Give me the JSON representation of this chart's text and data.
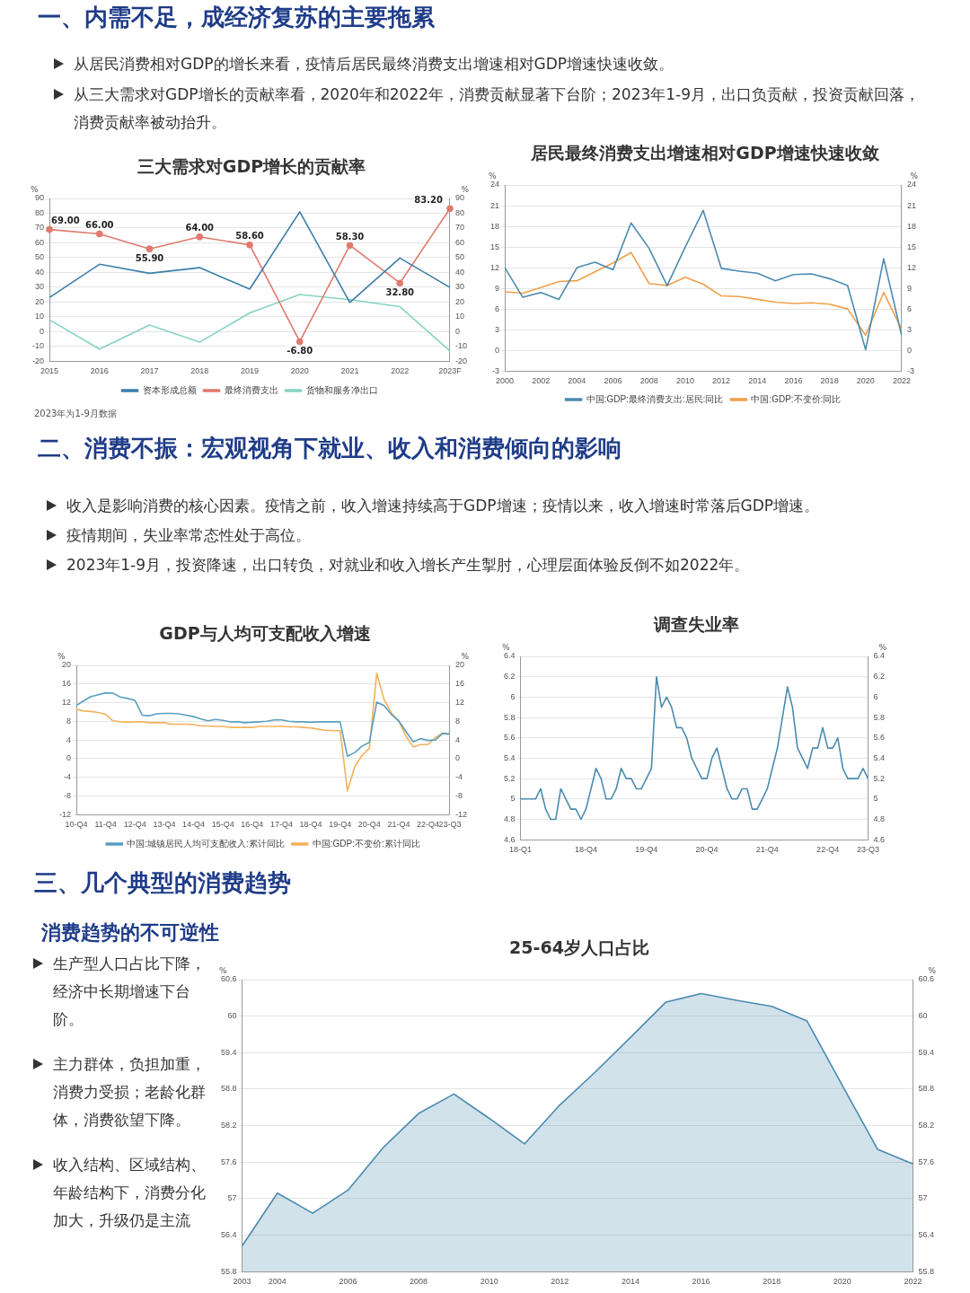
{
  "chart_data": [
    {
      "type": "line",
      "title": "三大需求对GDP增长的贡献率",
      "annotations": [
        "一、内需不足，成经济复苏的主要拖累",
        "从居民消费相对GDP的增长来看，疫情后居民最终消费支出增速相对GDP增速快速收敛。",
        "从三大需求对GDP增长的贡献率看，2020年和2022年，消费贡献显著下台阶；2023年1-9月，出口负贡献，投资贡献回落，消费贡献率被动抬升。",
        "2023年为1-9月数据"
      ],
      "categories": [
        "2015",
        "2016",
        "2017",
        "2018",
        "2019",
        "2020",
        "2021",
        "2022",
        "2023F"
      ],
      "series": [
        {
          "name": "资本形成总额",
          "color": "#3b7fa8",
          "values": [
            23,
            45.5,
            39.4,
            43.2,
            28.7,
            81,
            19.7,
            49.7,
            29.8
          ]
        },
        {
          "name": "最终消费支出",
          "color": "#e07a6e",
          "marker": "circle",
          "values": [
            69,
            66,
            55.9,
            64,
            58.6,
            -6.8,
            58.3,
            32.8,
            83.2
          ],
          "value_labels": [
            "69.00",
            "66.00",
            "55.90",
            "64.00",
            "58.60",
            "-6.80",
            "58.30",
            "32.80",
            "83.20"
          ]
        },
        {
          "name": "货物和服务净出口",
          "color": "#86d3c3",
          "values": [
            8,
            -11.8,
            4.4,
            -7.2,
            12.6,
            25,
            21.6,
            16.8,
            -13.1
          ]
        }
      ],
      "ylabel": "%",
      "y2label": "%",
      "ylim": [
        -20,
        90
      ],
      "yticks": [
        -20,
        -10,
        0,
        10,
        20,
        30,
        40,
        50,
        60,
        70,
        80,
        90
      ],
      "y2lim": [
        -20,
        90
      ],
      "y2ticks": [
        -20,
        -10,
        0,
        10,
        20,
        30,
        40,
        50,
        60,
        70,
        80,
        90
      ],
      "grid": "y",
      "legend": "bottom",
      "marker": "none",
      "line_style": "solid"
    },
    {
      "type": "line",
      "title": "居民最终消费支出增速相对GDP增速快速收敛",
      "x": [
        2000,
        2001,
        2002,
        2003,
        2004,
        2005,
        2006,
        2007,
        2008,
        2009,
        2010,
        2011,
        2012,
        2013,
        2014,
        2015,
        2016,
        2017,
        2018,
        2019,
        2020,
        2021,
        2022
      ],
      "series": [
        {
          "name": "中国:GDP:最终消费支出:居民:同比",
          "color": "#4a8bb0",
          "values": [
            12.0,
            7.7,
            8.4,
            7.4,
            12.0,
            12.8,
            11.7,
            18.5,
            14.8,
            9.4,
            15.0,
            20.3,
            11.9,
            11.5,
            11.2,
            10.1,
            11.0,
            11.1,
            10.4,
            9.4,
            0.1,
            13.3,
            2.1
          ]
        },
        {
          "name": "中国:GDP:不变价:同比",
          "color": "#f0a04b",
          "values": [
            8.5,
            8.3,
            9.1,
            10.0,
            10.1,
            11.4,
            12.7,
            14.2,
            9.7,
            9.4,
            10.6,
            9.6,
            7.9,
            7.8,
            7.4,
            7.0,
            6.8,
            6.9,
            6.7,
            6.0,
            2.2,
            8.4,
            3.0
          ]
        }
      ],
      "xlim": [
        2000,
        2022
      ],
      "xticks": [
        2000,
        2002,
        2004,
        2006,
        2008,
        2010,
        2012,
        2014,
        2016,
        2018,
        2020,
        2022
      ],
      "ylabel": "%",
      "y2label": "%",
      "ylim": [
        -3,
        24
      ],
      "yticks": [
        -3,
        0,
        3,
        6,
        9,
        12,
        15,
        18,
        21,
        24
      ],
      "y2lim": [
        -3,
        24
      ],
      "y2ticks": [
        -3,
        0,
        3,
        6,
        9,
        12,
        15,
        18,
        21,
        24
      ],
      "grid": "y",
      "legend": "bottom",
      "marker": "none",
      "line_style": "solid"
    },
    {
      "type": "line",
      "title": "GDP与人均可支配收入增速",
      "annotations": [
        "二、消费不振：宏观视角下就业、收入和消费倾向的影响",
        "收入是影响消费的核心因素。疫情之前，收入增速持续高于GDP增速；疫情以来，收入增速时常落后GDP增速。",
        "疫情期间，失业率常态性处于高位。",
        "2023年1-9月，投资降速，出口转负，对就业和收入增长产生掣肘，心理层面体验反倒不如2022年。"
      ],
      "categories": [
        "10-Q4",
        null,
        null,
        null,
        "11-Q4",
        null,
        null,
        null,
        "12-Q4",
        null,
        null,
        null,
        "13-Q4",
        null,
        null,
        null,
        "14-Q4",
        null,
        null,
        null,
        "15-Q4",
        null,
        null,
        null,
        "16-Q4",
        null,
        null,
        null,
        "17-Q4",
        null,
        null,
        null,
        "18-Q4",
        null,
        null,
        null,
        "19-Q4",
        null,
        null,
        null,
        "20-Q4",
        null,
        null,
        null,
        "21-Q4",
        null,
        null,
        null,
        "22-Q4",
        null,
        null,
        "23-Q3"
      ],
      "series": [
        {
          "name": "中国:城镇居民人均可支配收入:累计同比",
          "color": "#5a9fc0",
          "values": [
            11.4,
            12.4,
            13.3,
            13.7,
            14.1,
            14.0,
            13.2,
            12.9,
            12.5,
            9.3,
            9.2,
            9.6,
            9.7,
            9.7,
            9.6,
            9.3,
            9.0,
            8.5,
            8.1,
            8.4,
            8.2,
            7.9,
            7.9,
            7.7,
            7.8,
            7.9,
            8.0,
            8.3,
            8.3,
            8.0,
            7.9,
            7.9,
            7.8,
            7.9,
            7.9,
            7.9,
            7.9,
            0.5,
            1.3,
            2.7,
            3.5,
            12.1,
            11.4,
            9.5,
            8.1,
            5.8,
            3.6,
            4.3,
            3.9,
            4.0,
            5.4,
            5.3
          ]
        },
        {
          "name": "中国:GDP:不变价:累计同比",
          "color": "#f2b25c",
          "values": [
            10.6,
            10.2,
            10.1,
            9.9,
            9.5,
            8.1,
            7.9,
            7.8,
            7.9,
            7.9,
            7.7,
            7.7,
            7.7,
            7.4,
            7.4,
            7.4,
            7.3,
            7.0,
            7.0,
            6.9,
            6.9,
            6.7,
            6.7,
            6.7,
            6.7,
            6.9,
            6.9,
            6.9,
            6.9,
            6.8,
            6.8,
            6.7,
            6.6,
            6.3,
            6.1,
            6.0,
            6.0,
            -6.9,
            -1.7,
            0.7,
            2.2,
            18.3,
            12.7,
            9.8,
            8.1,
            4.8,
            2.5,
            3.0,
            3.0,
            4.5,
            5.5,
            5.2
          ]
        }
      ],
      "ylabel": "%",
      "y2label": "%",
      "ylim": [
        -12,
        20
      ],
      "yticks": [
        -12,
        -8,
        -4,
        0,
        4,
        8,
        12,
        16,
        20
      ],
      "y2lim": [
        -12,
        20
      ],
      "y2ticks": [
        -12,
        -8,
        -4,
        0,
        4,
        8,
        12,
        16,
        20
      ],
      "grid": "y",
      "legend": "bottom",
      "marker": "none",
      "line_style": "solid"
    },
    {
      "type": "line",
      "title": "调查失业率",
      "categories": [
        "18-Q1",
        null,
        null,
        null,
        null,
        null,
        null,
        null,
        null,
        null,
        null,
        null,
        null,
        "18-Q4",
        null,
        null,
        null,
        null,
        null,
        null,
        null,
        null,
        null,
        null,
        null,
        "19-Q4",
        null,
        null,
        null,
        null,
        null,
        null,
        null,
        null,
        null,
        null,
        null,
        "20-Q4",
        null,
        null,
        null,
        null,
        null,
        null,
        null,
        null,
        null,
        null,
        null,
        "21-Q4",
        null,
        null,
        null,
        null,
        null,
        null,
        null,
        null,
        null,
        null,
        null,
        "22-Q4",
        null,
        null,
        null,
        null,
        null,
        null,
        null,
        "23-Q3"
      ],
      "values": [
        5.0,
        5.0,
        5.0,
        5.0,
        5.1,
        4.9,
        4.8,
        4.8,
        5.1,
        5.0,
        4.9,
        4.9,
        4.8,
        4.9,
        5.1,
        5.3,
        5.2,
        5.0,
        5.0,
        5.1,
        5.3,
        5.2,
        5.2,
        5.1,
        5.1,
        5.2,
        5.3,
        6.2,
        5.9,
        6.0,
        5.9,
        5.7,
        5.7,
        5.6,
        5.4,
        5.3,
        5.2,
        5.2,
        5.4,
        5.5,
        5.3,
        5.1,
        5.0,
        5.0,
        5.1,
        5.1,
        4.9,
        4.9,
        5.0,
        5.1,
        5.3,
        5.5,
        5.8,
        6.1,
        5.9,
        5.5,
        5.4,
        5.3,
        5.5,
        5.5,
        5.7,
        5.5,
        5.5,
        5.6,
        5.3,
        5.2,
        5.2,
        5.2,
        5.3,
        5.2
      ],
      "color": "#4a8bb0",
      "ylabel": "%",
      "y2label": "%",
      "ylim": [
        4.6,
        6.4
      ],
      "yticks": [
        4.6,
        4.8,
        5,
        5.2,
        5.4,
        5.6,
        5.8,
        6,
        6.2,
        6.4
      ],
      "y2lim": [
        4.6,
        6.4
      ],
      "y2ticks": [
        4.6,
        4.8,
        5,
        5.2,
        5.4,
        5.6,
        5.8,
        6,
        6.2,
        6.4
      ],
      "grid": "y",
      "marker": "none",
      "line_style": "solid"
    },
    {
      "type": "area",
      "title": "25-64岁人口占比",
      "annotations": [
        "三、几个典型的消费趋势",
        "消费趋势的不可逆性",
        "生产型人口占比下降，经济中长期增速下台阶。",
        "主力群体，负担加重，消费力受损；老龄化群体，消费欲望下降。",
        "收入结构、区域结构、年龄结构下，消费分化加大，升级仍是主流"
      ],
      "x": [
        2003,
        2004,
        2005,
        2006,
        2007,
        2008,
        2009,
        2010,
        2011,
        2012,
        2013,
        2014,
        2015,
        2016,
        2017,
        2018,
        2019,
        2020,
        2021,
        2022
      ],
      "values": [
        56.22,
        57.09,
        56.76,
        57.14,
        57.84,
        58.4,
        58.72,
        58.32,
        57.9,
        58.54,
        59.08,
        59.65,
        60.23,
        60.37,
        60.26,
        60.16,
        59.92,
        58.86,
        57.81,
        57.57
      ],
      "color": "#4a8bb0",
      "xlim": [
        2003,
        2022
      ],
      "xticks": [
        2003,
        2004,
        2006,
        2008,
        2010,
        2012,
        2014,
        2016,
        2018,
        2020,
        2022
      ],
      "ylabel": "%",
      "y2label": "%",
      "ylim": [
        55.8,
        60.6
      ],
      "yticks": [
        55.8,
        56.4,
        57,
        57.6,
        58.2,
        58.8,
        59.4,
        60,
        60.6
      ],
      "y2lim": [
        55.8,
        60.6
      ],
      "y2ticks": [
        55.8,
        56.4,
        57,
        57.6,
        58.2,
        58.8,
        59.4,
        60,
        60.6
      ],
      "grid": "y",
      "marker": "none",
      "line_style": "solid"
    }
  ]
}
